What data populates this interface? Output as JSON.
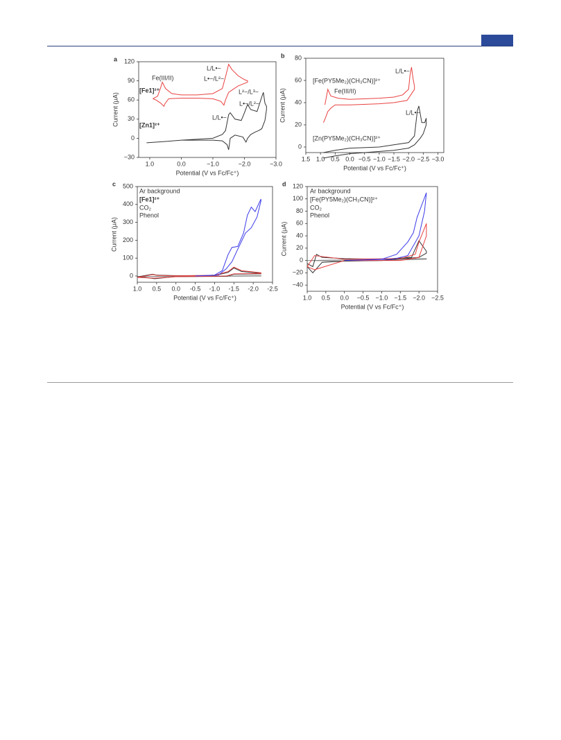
{
  "chart_data": [
    {
      "type": "line",
      "label": "a",
      "xlabel": "Potential (V vs Fc/Fc⁺)",
      "ylabel": "Current (μA)",
      "xlim": [
        1.35,
        -3.0
      ],
      "ylim": [
        -30,
        120
      ],
      "xticks": [
        {
          "value": 1,
          "label": "1.0"
        },
        {
          "value": 0,
          "label": "0.0"
        },
        {
          "value": -1,
          "label": "−1.0"
        },
        {
          "value": -2,
          "label": "−2.0"
        },
        {
          "value": -3,
          "label": "−3.0"
        }
      ],
      "yticks": [
        {
          "value": -30,
          "label": "−30"
        },
        0,
        30,
        60,
        90,
        120
      ],
      "annotations": [
        "Fe(III/II)",
        "L/L•−",
        "L•−/L²−",
        "L²−/L³−",
        "L•−/L²−",
        "L/L•−"
      ],
      "series": [
        {
          "name": "[Fe1]²⁺",
          "color": "#e8403f",
          "x": [
            0.9,
            0.75,
            0.65,
            0.6,
            0.5,
            0.3,
            0,
            -0.5,
            -1.0,
            -1.3,
            -1.42,
            -1.5,
            -1.6,
            -1.8,
            -2.0,
            -2.1,
            -2.1,
            -1.8,
            -1.5,
            -1.4,
            -1.35,
            -1.25,
            -1.0,
            -0.5,
            0,
            0.4,
            0.52,
            0.55,
            0.65,
            0.8,
            0.9
          ],
          "values": [
            62,
            66,
            80,
            88,
            78,
            70,
            68,
            68,
            70,
            78,
            100,
            116,
            108,
            98,
            92,
            90,
            88,
            82,
            72,
            60,
            52,
            58,
            62,
            63,
            63,
            62,
            54,
            50,
            55,
            60,
            62
          ]
        },
        {
          "name": "[Zn1]²⁺",
          "color": "#333333",
          "x": [
            1.1,
            0.5,
            0,
            -1,
            -1.3,
            -1.4,
            -1.5,
            -1.55,
            -1.7,
            -1.9,
            -2.0,
            -2.1,
            -2.2,
            -2.4,
            -2.55,
            -2.6,
            -2.65,
            -2.7,
            -2.7,
            -2.65,
            -2.55,
            -2.45,
            -2.35,
            -2.2,
            -2.1,
            -2.05,
            -1.95,
            -1.7,
            -1.55,
            -1.5,
            -1.45,
            -1.3,
            -1,
            0,
            0.5,
            1.1
          ],
          "values": [
            -7,
            -5,
            -3,
            0,
            6,
            12,
            37,
            40,
            30,
            28,
            40,
            53,
            45,
            42,
            65,
            72,
            55,
            50,
            45,
            28,
            15,
            12,
            10,
            6,
            0,
            -6,
            2,
            5,
            0,
            -18,
            -10,
            -4,
            -3,
            -3,
            -5,
            -7
          ]
        }
      ]
    },
    {
      "type": "line",
      "label": "b",
      "xlabel": "Potential (V vs Fc/Fc⁺)",
      "ylabel": "Current (μA)",
      "xlim": [
        1.5,
        -3.2
      ],
      "ylim": [
        -5,
        80
      ],
      "xticks": [
        {
          "value": 1.5,
          "label": "1.5"
        },
        {
          "value": 1,
          "label": "1.0"
        },
        {
          "value": 0.5,
          "label": "0.5"
        },
        {
          "value": 0,
          "label": "0.0"
        },
        {
          "value": -0.5,
          "label": "−0.5"
        },
        {
          "value": -1,
          "label": "−1.0"
        },
        {
          "value": -1.5,
          "label": "−1.5"
        },
        {
          "value": -2,
          "label": "−2.0"
        },
        {
          "value": -2.5,
          "label": "−2.5"
        },
        {
          "value": -3,
          "label": "−3.0"
        }
      ],
      "yticks": [
        0,
        20,
        40,
        60,
        80
      ],
      "annotations": [
        "L/L•−",
        "Fe(III/II)",
        "L/L•−"
      ],
      "series": [
        {
          "name": "[Fe(PY5Me₂)(CH₃CN)]²⁺",
          "color": "#e8403f",
          "x": [
            0.85,
            0.8,
            0.75,
            0.65,
            0.4,
            0,
            -1,
            -1.5,
            -1.8,
            -2.0,
            -2.05,
            -2.1,
            -2.15,
            -2.2,
            -2.2,
            -2.1,
            -1.95,
            -1.5,
            -1,
            0,
            0.5,
            0.65,
            0.75,
            0.85,
            0.9
          ],
          "values": [
            38,
            45,
            52,
            46,
            44,
            43,
            44,
            45,
            47,
            52,
            65,
            72,
            62,
            55,
            52,
            48,
            42,
            40,
            39,
            38,
            38,
            35,
            32,
            25,
            22
          ]
        },
        {
          "name": "[Zn(PY5Me₂)(CH₃CN)]²⁺",
          "color": "#333333",
          "x": [
            0.9,
            0.5,
            0,
            -1,
            -1.5,
            -2,
            -2.2,
            -2.3,
            -2.35,
            -2.45,
            -2.55,
            -2.6,
            -2.6,
            -2.5,
            -2.4,
            -2.2,
            -2,
            -1.5,
            -1,
            0,
            0.5,
            0.9
          ],
          "values": [
            -5,
            -3,
            -1,
            0,
            2,
            4,
            10,
            33,
            37,
            22,
            22,
            26,
            20,
            12,
            8,
            2,
            -1,
            -3,
            -4,
            -6,
            -8,
            -10
          ]
        }
      ]
    },
    {
      "type": "line",
      "label": "c",
      "xlabel": "Potential (V vs Fc/Fc⁺)",
      "ylabel": "Current (μA)",
      "xlim": [
        1.0,
        -2.5
      ],
      "ylim": [
        -35,
        500
      ],
      "xticks": [
        {
          "value": 1,
          "label": "1.0"
        },
        {
          "value": 0.5,
          "label": "0.5"
        },
        {
          "value": 0,
          "label": "0.0"
        },
        {
          "value": -0.5,
          "label": "-0.5"
        },
        {
          "value": -1,
          "label": "-1.0"
        },
        {
          "value": -1.5,
          "label": "-1.5"
        },
        {
          "value": -2,
          "label": "-2.0"
        },
        {
          "value": -2.5,
          "label": "-2.5"
        }
      ],
      "yticks": [
        0,
        100,
        200,
        300,
        400,
        500
      ],
      "annotations": [],
      "series": [
        {
          "name": "Ar background",
          "color": "#888888",
          "x": [
            1.0,
            0,
            -1,
            -2.2,
            -2.2,
            -1,
            0,
            1.0
          ],
          "values": [
            -3,
            -1,
            0,
            2,
            0,
            -2,
            -3,
            -3
          ]
        },
        {
          "name": "[Fe1]²⁺",
          "color": "#333333",
          "x": [
            1.0,
            0.6,
            0.5,
            0,
            -1,
            -1.35,
            -1.5,
            -1.7,
            -2.2,
            -2.2,
            -1.5,
            -1.3,
            0,
            0.55,
            0.8,
            1.0
          ],
          "values": [
            -5,
            10,
            5,
            2,
            3,
            20,
            45,
            25,
            15,
            12,
            10,
            -2,
            -3,
            -15,
            -8,
            -5
          ]
        },
        {
          "name": "CO₂",
          "color": "#e8403f",
          "x": [
            1.0,
            0.6,
            0.5,
            0,
            -1,
            -1.35,
            -1.5,
            -1.7,
            -2.2,
            -2.2,
            -1.5,
            -1.3,
            0,
            0.55,
            0.8,
            1.0
          ],
          "values": [
            -8,
            8,
            4,
            1,
            4,
            25,
            50,
            30,
            18,
            14,
            12,
            0,
            -4,
            -12,
            -10,
            -8
          ]
        },
        {
          "name": "Phenol",
          "color": "#3a3ae8",
          "x": [
            -0.5,
            -1.0,
            -1.2,
            -1.35,
            -1.45,
            -1.6,
            -1.75,
            -1.85,
            -1.95,
            -2.05,
            -2.2,
            -2.2,
            -2.1,
            -1.95,
            -1.8,
            -1.6,
            -1.45,
            -1.3,
            -1.1,
            -0.5
          ],
          "values": [
            0,
            5,
            30,
            120,
            160,
            165,
            240,
            340,
            385,
            360,
            430,
            420,
            330,
            270,
            240,
            150,
            80,
            40,
            5,
            0
          ]
        }
      ]
    },
    {
      "type": "line",
      "label": "d",
      "xlabel": "Potential (V vs Fc/Fc⁺)",
      "ylabel": "Current (μA)",
      "xlim": [
        1.0,
        -2.5
      ],
      "ylim": [
        -50,
        120
      ],
      "xticks": [
        {
          "value": 1,
          "label": "1.0"
        },
        {
          "value": 0.5,
          "label": "0.5"
        },
        {
          "value": 0,
          "label": "0.0"
        },
        {
          "value": -0.5,
          "label": "−0.5"
        },
        {
          "value": -1,
          "label": "−1.0"
        },
        {
          "value": -1.5,
          "label": "−1.5"
        },
        {
          "value": -2,
          "label": "−2.0"
        },
        {
          "value": -2.5,
          "label": "−2.5"
        }
      ],
      "yticks": [
        {
          "value": -40,
          "label": "−40"
        },
        {
          "value": -20,
          "label": "−20"
        },
        0,
        20,
        40,
        60,
        80,
        100,
        120
      ],
      "annotations": [],
      "series": [
        {
          "name": "Ar background",
          "color": "#888888",
          "x": [
            1.0,
            0,
            -1,
            -2.2,
            -2.2,
            -1,
            0,
            1.0
          ],
          "values": [
            0,
            1,
            2,
            3,
            2,
            0,
            -1,
            0
          ]
        },
        {
          "name": "[Fe(PY5Me₂)(CH₃CN)]²⁺",
          "color": "#333333",
          "x": [
            1.0,
            0.85,
            0.75,
            0.6,
            0,
            -1,
            -1.8,
            -2.0,
            -2.2,
            -2.2,
            -2,
            -1,
            0,
            0.6,
            0.85,
            1.0
          ],
          "values": [
            -5,
            -10,
            10,
            5,
            3,
            2,
            5,
            32,
            15,
            12,
            5,
            0,
            -1,
            -3,
            -20,
            -10
          ]
        },
        {
          "name": "CO₂",
          "color": "#e8403f",
          "x": [
            1.0,
            0.8,
            0,
            -1.5,
            -1.9,
            -2.0,
            -2.2,
            -2.2,
            -2.0,
            -1.5,
            0,
            0.8,
            1.0
          ],
          "values": [
            -10,
            8,
            2,
            3,
            10,
            30,
            60,
            40,
            5,
            0,
            0,
            -15,
            -10
          ]
        },
        {
          "name": "Phenol",
          "color": "#3a3ae8",
          "x": [
            0.0,
            -1,
            -1.4,
            -1.7,
            -1.85,
            -1.95,
            -2.2,
            -2.15,
            -2.0,
            -1.7,
            -1.3,
            0
          ],
          "values": [
            0,
            2,
            10,
            30,
            45,
            70,
            110,
            80,
            40,
            8,
            2,
            0
          ]
        }
      ]
    }
  ]
}
